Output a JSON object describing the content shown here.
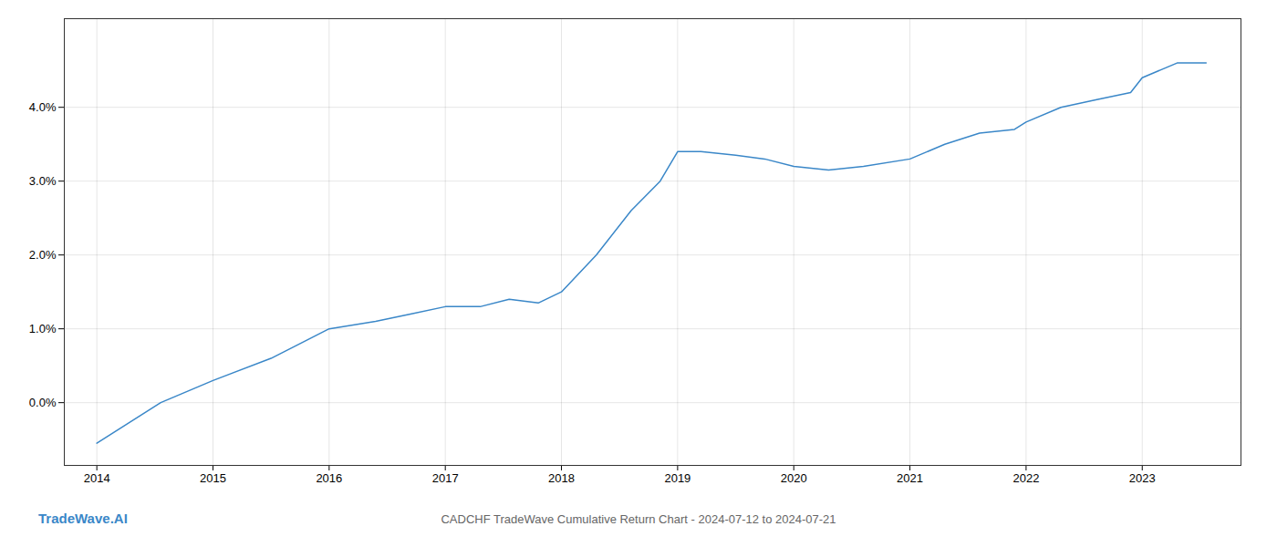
{
  "chart_data": {
    "type": "line",
    "title": "CADCHF TradeWave Cumulative Return Chart - 2024-07-12 to 2024-07-21",
    "annotations": [
      {
        "text": "TradeWave.AI",
        "color": "#3a87c8"
      }
    ],
    "x": [
      2014.0,
      2014.55,
      2015.0,
      2015.5,
      2016.0,
      2016.4,
      2016.7,
      2017.0,
      2017.3,
      2017.55,
      2017.8,
      2018.0,
      2018.3,
      2018.6,
      2018.85,
      2019.0,
      2019.2,
      2019.5,
      2019.75,
      2020.0,
      2020.3,
      2020.6,
      2021.0,
      2021.3,
      2021.6,
      2021.9,
      2022.0,
      2022.3,
      2022.6,
      2022.9,
      2023.0,
      2023.3,
      2023.55
    ],
    "values": [
      -0.0055,
      0.0,
      0.003,
      0.006,
      0.01,
      0.011,
      0.012,
      0.013,
      0.013,
      0.014,
      0.0135,
      0.015,
      0.02,
      0.026,
      0.03,
      0.034,
      0.034,
      0.0335,
      0.033,
      0.032,
      0.0315,
      0.032,
      0.033,
      0.035,
      0.0365,
      0.037,
      0.038,
      0.04,
      0.041,
      0.042,
      0.044,
      0.046,
      0.046
    ],
    "color": "#3a87c8",
    "xlim": [
      2013.72,
      2023.85
    ],
    "xticks": [
      2014,
      2015,
      2016,
      2017,
      2018,
      2019,
      2020,
      2021,
      2022,
      2023
    ],
    "ylim": [
      -0.0085,
      0.052
    ],
    "yticks": [
      {
        "value": 0.0,
        "label": "0.0%"
      },
      {
        "value": 0.01,
        "label": "1.0%"
      },
      {
        "value": 0.02,
        "label": "2.0%"
      },
      {
        "value": 0.03,
        "label": "3.0%"
      },
      {
        "value": 0.04,
        "label": "4.0%"
      }
    ],
    "grid": true
  }
}
